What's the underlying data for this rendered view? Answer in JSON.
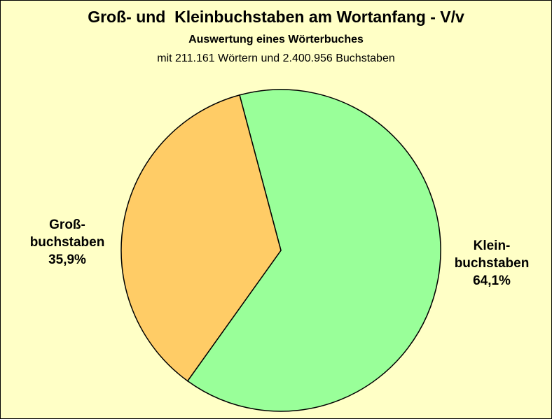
{
  "chart_data": {
    "type": "pie",
    "title": "Groß- und  Kleinbuchstaben am Wortanfang - V/v",
    "subtitle": "Auswertung eines Wörterbuches",
    "subtitle2": "mit 211.161 Wörtern und 2.400.956 Buchstaben",
    "slices": [
      {
        "label_lines": [
          "Klein-",
          "buchstaben"
        ],
        "value": 64.1,
        "value_label": "64,1%",
        "color": "#99ff99"
      },
      {
        "label_lines": [
          "Groß-",
          "buchstaben"
        ],
        "value": 35.9,
        "value_label": "35,9%",
        "color": "#ffcc66"
      }
    ],
    "background": "#ffffc6"
  }
}
